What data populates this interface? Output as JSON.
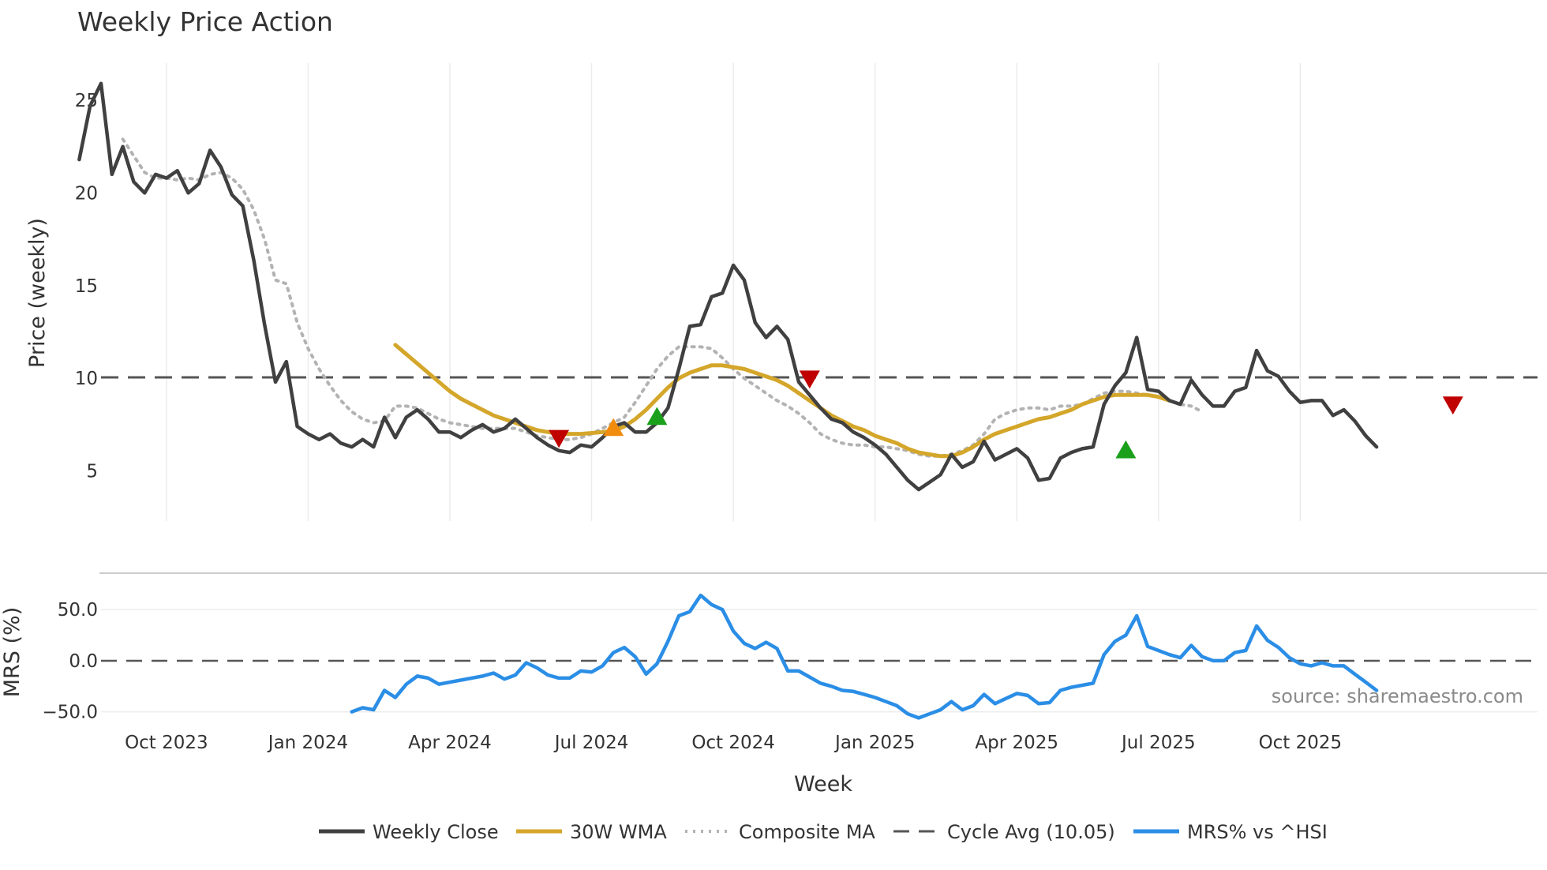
{
  "chart_data": {
    "type": "line",
    "title": "Weekly Price Action",
    "xlabel": "Week",
    "x_ticks": [
      "Oct 2023",
      "Jan 2024",
      "Apr 2024",
      "Jul 2024",
      "Oct 2024",
      "Jan 2025",
      "Apr 2025",
      "Jul 2025",
      "Oct 2025"
    ],
    "x_tick_weeks": [
      8,
      21,
      34,
      47,
      60,
      73,
      86,
      99,
      112
    ],
    "week_start": 0,
    "week_end": 130,
    "price_panel": {
      "ylabel": "Price (weekly)",
      "ylim": [
        2.3,
        27.0
      ],
      "y_ticks": [
        "5",
        "10",
        "15",
        "20",
        "25"
      ],
      "y_tick_values": [
        5,
        10,
        15,
        20,
        25
      ],
      "series": [
        {
          "name": "Weekly Close",
          "color": "#404040",
          "style": "solid",
          "start_week": 0,
          "values": [
            21.8,
            24.7,
            25.9,
            21.0,
            22.5,
            20.6,
            20.0,
            21.0,
            20.8,
            21.2,
            20.0,
            20.5,
            22.3,
            21.4,
            19.9,
            19.3,
            16.4,
            12.9,
            9.8,
            10.9,
            7.4,
            7.0,
            6.7,
            7.0,
            6.5,
            6.3,
            6.7,
            6.3,
            7.9,
            6.8,
            7.9,
            8.3,
            7.8,
            7.1,
            7.1,
            6.8,
            7.2,
            7.5,
            7.1,
            7.3,
            7.8,
            7.3,
            6.8,
            6.4,
            6.1,
            6.0,
            6.4,
            6.3,
            6.8,
            7.4,
            7.6,
            7.1,
            7.1,
            7.6,
            8.4,
            10.5,
            12.8,
            12.9,
            14.4,
            14.6,
            16.1,
            15.3,
            13.0,
            12.2,
            12.8,
            12.1,
            9.8,
            9.1,
            8.4,
            7.8,
            7.6,
            7.1,
            6.8,
            6.4,
            5.9,
            5.2,
            4.5,
            4.0,
            4.4,
            4.8,
            5.9,
            5.2,
            5.5,
            6.6,
            5.6,
            5.9,
            6.2,
            5.7,
            4.5,
            4.6,
            5.7,
            6.0,
            6.2,
            6.3,
            8.6,
            9.6,
            10.3,
            12.2,
            9.4,
            9.3,
            8.8,
            8.6,
            9.9,
            9.1,
            8.5,
            8.5,
            9.3,
            9.5,
            11.5,
            10.4,
            10.1,
            9.3,
            8.7,
            8.8,
            8.8,
            8.0,
            8.3,
            7.7,
            6.9,
            6.3
          ]
        },
        {
          "name": "30W WMA",
          "color": "#d4a62a",
          "style": "solid",
          "start_week": 29,
          "values": [
            11.8,
            11.3,
            10.8,
            10.3,
            9.8,
            9.3,
            8.9,
            8.6,
            8.3,
            8.0,
            7.8,
            7.6,
            7.4,
            7.2,
            7.1,
            7.0,
            7.0,
            7.0,
            7.05,
            7.1,
            7.15,
            7.4,
            7.8,
            8.3,
            8.9,
            9.5,
            10.0,
            10.3,
            10.5,
            10.7,
            10.7,
            10.6,
            10.5,
            10.3,
            10.1,
            9.9,
            9.6,
            9.2,
            8.8,
            8.4,
            8.0,
            7.7,
            7.4,
            7.2,
            6.9,
            6.7,
            6.5,
            6.2,
            6.0,
            5.9,
            5.8,
            5.8,
            6.0,
            6.3,
            6.7,
            7.0,
            7.2,
            7.4,
            7.6,
            7.8,
            7.9,
            8.1,
            8.3,
            8.6,
            8.8,
            9.0,
            9.1,
            9.1,
            9.1,
            9.1,
            9.0,
            8.8
          ]
        },
        {
          "name": "Composite MA",
          "color": "#b3b3b3",
          "style": "dotted",
          "start_week": 4,
          "values": [
            22.9,
            22.0,
            21.1,
            20.8,
            20.8,
            20.7,
            20.8,
            20.7,
            21.0,
            21.1,
            20.8,
            20.2,
            19.1,
            17.5,
            15.3,
            15.1,
            13.0,
            11.6,
            10.5,
            9.6,
            8.8,
            8.2,
            7.8,
            7.6,
            7.7,
            8.5,
            8.5,
            8.4,
            8.1,
            7.8,
            7.6,
            7.5,
            7.4,
            7.3,
            7.3,
            7.3,
            7.3,
            7.1,
            6.9,
            6.8,
            6.7,
            6.7,
            6.8,
            7.0,
            7.3,
            7.6,
            7.9,
            8.7,
            9.6,
            10.5,
            11.2,
            11.7,
            11.7,
            11.7,
            11.6,
            11.1,
            10.5,
            10.0,
            9.6,
            9.2,
            8.8,
            8.5,
            8.1,
            7.6,
            7.0,
            6.7,
            6.5,
            6.4,
            6.4,
            6.3,
            6.3,
            6.2,
            6.1,
            5.9,
            5.8,
            5.8,
            5.9,
            6.1,
            6.4,
            7.0,
            7.8,
            8.1,
            8.3,
            8.4,
            8.4,
            8.3,
            8.5,
            8.5,
            8.6,
            8.9,
            9.2,
            9.3,
            9.3,
            9.2,
            9.1,
            9.0,
            8.8,
            8.6,
            8.5,
            8.2
          ]
        },
        {
          "name": "Cycle Avg (10.05)",
          "color": "#555555",
          "style": "dashed",
          "constant": 10.05
        }
      ],
      "markers": [
        {
          "week": 44,
          "value": 6.8,
          "shape": "triangle-down",
          "color": "#c00000"
        },
        {
          "week": 49,
          "value": 7.3,
          "shape": "triangle-up",
          "color": "#f28c0f"
        },
        {
          "week": 53,
          "value": 7.9,
          "shape": "triangle-up",
          "color": "#1aa01a"
        },
        {
          "week": 67,
          "value": 10.0,
          "shape": "triangle-down",
          "color": "#c00000"
        },
        {
          "week": 96,
          "value": 6.1,
          "shape": "triangle-up",
          "color": "#1aa01a"
        },
        {
          "week": 126,
          "value": 8.6,
          "shape": "triangle-down",
          "color": "#c00000"
        }
      ]
    },
    "mrs_panel": {
      "ylabel": "MRS (%)",
      "ylim": [
        -58,
        78
      ],
      "y_ticks": [
        "50.0",
        "0.0",
        "−50.0"
      ],
      "y_tick_values": [
        50,
        0,
        -50
      ],
      "zero_line": true,
      "series": [
        {
          "name": "MRS% vs ^HSI",
          "color": "#2b8ee6",
          "style": "solid",
          "start_week": 25,
          "values": [
            -50,
            -46,
            -48,
            -29,
            -36,
            -23,
            -15,
            -17,
            -23,
            -21,
            -19,
            -17,
            -15,
            -12,
            -18,
            -14,
            -2,
            -7,
            -14,
            -17,
            -17,
            -10,
            -11,
            -5,
            8,
            13,
            4,
            -13,
            -3,
            19,
            44,
            48,
            64,
            55,
            50,
            29,
            17,
            12,
            18,
            12,
            -10,
            -10,
            -16,
            -22,
            -25,
            -29,
            -30,
            -33,
            -36,
            -40,
            -44,
            -52,
            -56,
            -52,
            -48,
            -40,
            -48,
            -44,
            -33,
            -42,
            -37,
            -32,
            -34,
            -42,
            -41,
            -29,
            -26,
            -24,
            -22,
            6,
            19,
            25,
            44,
            14,
            10,
            6,
            3,
            15,
            4,
            0,
            0,
            8,
            10,
            34,
            20,
            13,
            3,
            -3,
            -5,
            -2,
            -5,
            -5,
            -13,
            -21,
            -29
          ]
        }
      ]
    },
    "legend": {
      "position": "bottom",
      "entries": [
        "Weekly Close",
        "30W WMA",
        "Composite MA",
        "Cycle Avg (10.05)",
        "MRS% vs ^HSI"
      ]
    },
    "annotation": "source: sharemaestro.com"
  }
}
